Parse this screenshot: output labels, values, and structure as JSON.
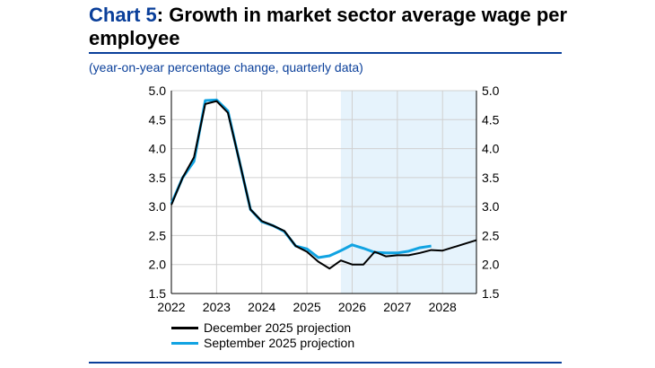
{
  "header": {
    "title_prefix": "Chart 5",
    "title_rest": ": Growth in market sector average wage per employee",
    "subtitle": "(year-on-year percentage change, quarterly data)"
  },
  "chart_data": {
    "type": "line",
    "title": "Chart 5: Growth in market sector average wage per employee",
    "subtitle": "(year-on-year percentage change, quarterly data)",
    "xlabel": "",
    "ylabel": "",
    "xlim": [
      2022,
      2028.75
    ],
    "ylim": [
      1.5,
      5.0
    ],
    "x_ticks": [
      "2022",
      "2023",
      "2024",
      "2025",
      "2026",
      "2027",
      "2028"
    ],
    "y_ticks": [
      "1.5",
      "2.0",
      "2.5",
      "3.0",
      "3.5",
      "4.0",
      "4.5",
      "5.0"
    ],
    "y_axis_both_sides": true,
    "grid": true,
    "projection_shading": {
      "from": 2025.75,
      "to": 2028.75,
      "color": "#e6f3fc"
    },
    "legend_placement": "bottom-left",
    "series": [
      {
        "name": "December 2025 projection",
        "color": "#000000",
        "x": [
          2022,
          2022.25,
          2022.5,
          2022.75,
          2023,
          2023.25,
          2023.5,
          2023.75,
          2024,
          2024.25,
          2024.5,
          2024.75,
          2025,
          2025.25,
          2025.5,
          2025.75,
          2026,
          2026.25,
          2026.5,
          2026.75,
          2027,
          2027.25,
          2027.5,
          2027.75,
          2028,
          2028.25,
          2028.5,
          2028.75
        ],
        "values": [
          3.03,
          3.5,
          3.85,
          4.77,
          4.82,
          4.62,
          3.8,
          2.95,
          2.75,
          2.67,
          2.58,
          2.32,
          2.22,
          2.05,
          1.93,
          2.07,
          2.0,
          2.0,
          2.22,
          2.14,
          2.16,
          2.16,
          2.2,
          2.25,
          2.24,
          2.3,
          2.36,
          2.42
        ]
      },
      {
        "name": "September 2025 projection",
        "color": "#11a3e2",
        "x": [
          2022,
          2022.25,
          2022.5,
          2022.75,
          2023,
          2023.25,
          2023.5,
          2023.75,
          2024,
          2024.25,
          2024.5,
          2024.75,
          2025,
          2025.25,
          2025.5,
          2025.75,
          2026,
          2026.25,
          2026.5,
          2026.75,
          2027,
          2027.25,
          2027.5,
          2027.75
        ],
        "values": [
          3.05,
          3.5,
          3.78,
          4.83,
          4.84,
          4.65,
          3.8,
          2.95,
          2.74,
          2.67,
          2.57,
          2.32,
          2.27,
          2.12,
          2.15,
          2.24,
          2.34,
          2.28,
          2.21,
          2.2,
          2.2,
          2.23,
          2.29,
          2.32
        ]
      }
    ]
  }
}
